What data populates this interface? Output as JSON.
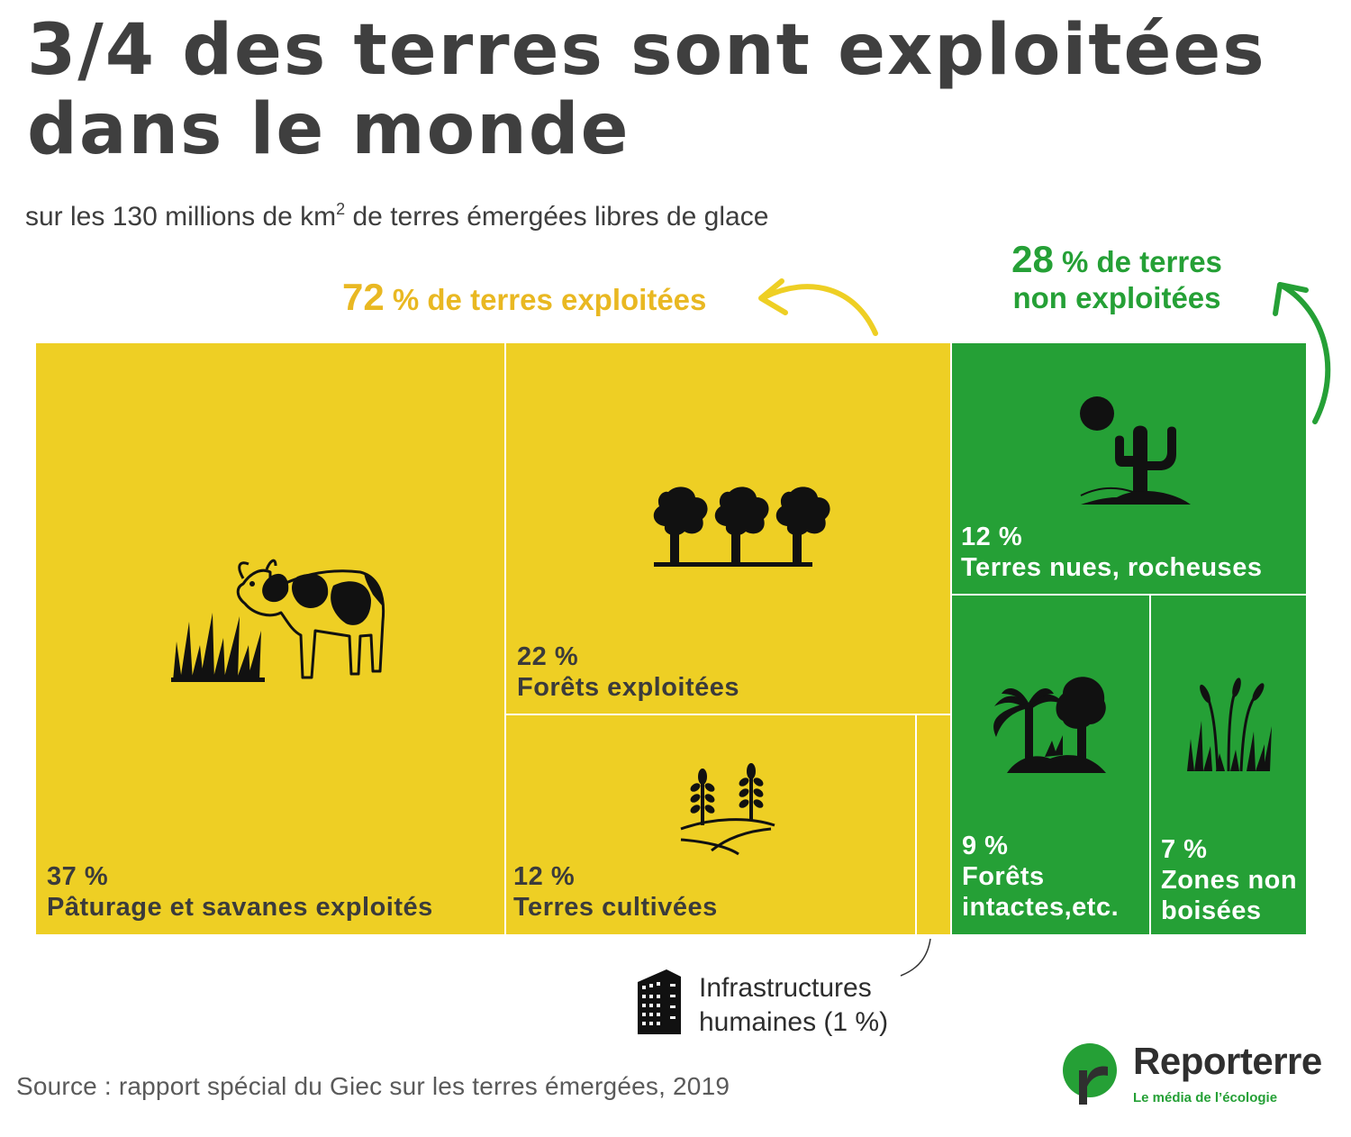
{
  "header": {
    "title_line1": "3/4 des terres sont exploitées",
    "title_line2": "dans le monde",
    "subtitle_pre": "sur les 130 millions de km",
    "subtitle_sup": "2",
    "subtitle_post": " de terres émergées libres de glace"
  },
  "groups": {
    "exploited": {
      "pct": "72",
      "label": " % de terres exploitées",
      "color": "#eecf24"
    },
    "free": {
      "pct": "28",
      "label_line1": " % de terres",
      "label_line2": "non exploitées",
      "color": "#25a036"
    }
  },
  "chart_data": {
    "type": "treemap",
    "unit": "%",
    "total_area": "130 millions de km²",
    "items": [
      {
        "name": "Pâturage et savanes exploités",
        "value": 37,
        "group": "exploited",
        "pct_label": "37 %",
        "icon": "cow-grass-icon"
      },
      {
        "name": "Forêts exploitées",
        "value": 22,
        "group": "exploited",
        "pct_label": "22 %",
        "icon": "trees-icon"
      },
      {
        "name": "Terres cultivées",
        "value": 12,
        "group": "exploited",
        "pct_label": "12 %",
        "icon": "wheat-field-icon"
      },
      {
        "name": "Infrastructures humaines",
        "value": 1,
        "group": "exploited",
        "pct_label": "(1 %)",
        "icon": "building-icon"
      },
      {
        "name": "Terres nues, rocheuses",
        "value": 12,
        "group": "free",
        "pct_label": "12 %",
        "icon": "cactus-sun-icon"
      },
      {
        "name": "Forêts intactes,etc.",
        "value": 9,
        "group": "free",
        "pct_label": "9 %",
        "icon": "palm-tree-icon"
      },
      {
        "name": "Zones non boisées",
        "value": 7,
        "group": "free",
        "pct_label": "7 %",
        "icon": "reeds-icon"
      }
    ]
  },
  "labels": {
    "pasture_pct": "37 %",
    "pasture_name": "Pâturage et savanes exploités",
    "forest_pct": "22 %",
    "forest_name": "Forêts exploitées",
    "crop_pct": "12 %",
    "crop_name": "Terres cultivées",
    "bare_pct": "12 %",
    "bare_name": "Terres nues, rocheuses",
    "intact_pct": "9 %",
    "intact_name1": "Forêts",
    "intact_name2": "intactes,etc.",
    "nonwood_pct": "7 %",
    "nonwood_name1": "Zones non",
    "nonwood_name2": "boisées",
    "infra_line1": "Infrastructures",
    "infra_line2": "humaines (1 %)"
  },
  "footer": {
    "source": "Source : rapport spécial du Giec sur les terres émergées, 2019",
    "logo_name": "Reporterre",
    "logo_tagline": "Le média de l’écologie"
  },
  "colors": {
    "exploited": "#eecf24",
    "free": "#25a036",
    "icon": "#111111"
  }
}
